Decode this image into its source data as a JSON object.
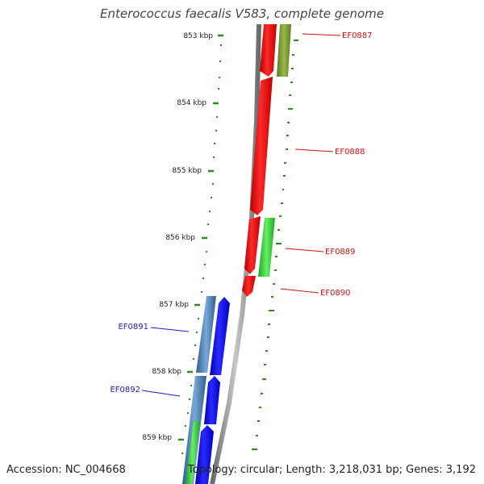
{
  "title": "Enterococcus faecalis V583, complete genome",
  "footer": {
    "accession": "Accession: NC_004668",
    "summary": "Topology: circular; Length: 3,218,031 bp; Genes: 3,192"
  },
  "colors": {
    "backbone": "#8a8a8a",
    "gc_ticks": "#2e8b1e",
    "forward_gene": "#ee1111",
    "forward_label": "#cc1111",
    "reverse_gene": "#1a1aee",
    "reverse_label": "#1a1acc",
    "olive_feature": "#7a9a2e",
    "green_feature": "#33cc33",
    "steel_feature": "#4a7eb0"
  },
  "ruler": [
    {
      "label": "853 kbp"
    },
    {
      "label": "854 kbp"
    },
    {
      "label": "855 kbp"
    },
    {
      "label": "856 kbp"
    },
    {
      "label": "857 kbp"
    },
    {
      "label": "858 kbp"
    },
    {
      "label": "859 kbp"
    }
  ],
  "genes": [
    {
      "name": "EF0887",
      "strand": "forward"
    },
    {
      "name": "EF0888",
      "strand": "forward"
    },
    {
      "name": "EF0889",
      "strand": "forward"
    },
    {
      "name": "EF0890",
      "strand": "forward"
    },
    {
      "name": "EF0891",
      "strand": "reverse"
    },
    {
      "name": "EF0892",
      "strand": "reverse"
    }
  ]
}
